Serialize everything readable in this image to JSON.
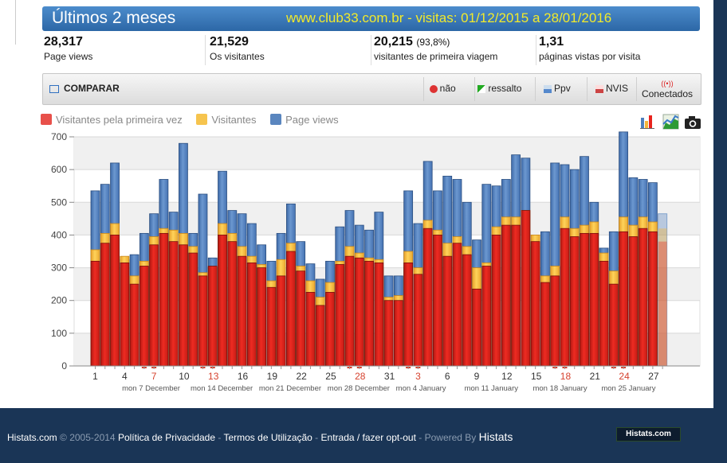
{
  "banner": {
    "title": "Últimos 2 meses",
    "subtitle": "www.club33.com.br - visitas: 01/12/2015 a 28/01/2016"
  },
  "stats": [
    {
      "value": "28,317",
      "label": "Page views"
    },
    {
      "value": "21,529",
      "label": "Os visitantes"
    },
    {
      "value": "20,215",
      "pct": "(93,8%)",
      "label": "visitantes de primeira viagem"
    },
    {
      "value": "1,31",
      "label": "páginas vistas por visita"
    }
  ],
  "toolbar": {
    "compare": "COMPARAR",
    "nao": "não",
    "ressalto": "ressalto",
    "ppv": "Ppv",
    "nvis": "NVIS",
    "conectados": "Conectados"
  },
  "legend": [
    "Visitantes pela primeira vez",
    "Visitantes",
    "Page views"
  ],
  "colors": {
    "first": "#e8231d",
    "visitors": "#f5b43a",
    "pageviews": "#4f7fbd",
    "weekend": "#d6422e"
  },
  "footer": {
    "brand": "Histats.com",
    "copyright": "© 2005-2014",
    "privacy": "Política de Privacidade",
    "terms": "Termos de Utilização",
    "optout": "Entrada / fazer opt-out",
    "powered": "- Powered By",
    "histats": "Histats",
    "badge": "Histats.com"
  },
  "chart_data": {
    "type": "bar",
    "ylim": [
      0,
      700
    ],
    "yticks": [
      0,
      100,
      200,
      300,
      400,
      500,
      600,
      700
    ],
    "x_tick_labels": [
      "1",
      "4",
      "7",
      "10",
      "13",
      "16",
      "19",
      "22",
      "25",
      "28",
      "31",
      "3",
      "6",
      "9",
      "12",
      "15",
      "18",
      "21",
      "24",
      "27"
    ],
    "x_tick_indices": [
      0,
      3,
      6,
      9,
      12,
      15,
      18,
      21,
      24,
      27,
      30,
      33,
      36,
      39,
      42,
      45,
      48,
      51,
      54,
      57
    ],
    "red_ticks": [
      6,
      12,
      27,
      33,
      48,
      54
    ],
    "week_labels": [
      "mon 7 December",
      "mon 14 December",
      "mon 21 December",
      "mon 28 December",
      "mon 4 January",
      "mon 11 January",
      "mon 18 January",
      "mon 25 January"
    ],
    "week_label_indices": [
      6,
      13,
      20,
      27,
      34,
      41,
      48,
      55
    ],
    "series": [
      {
        "name": "Page views",
        "values": [
          535,
          555,
          620,
          325,
          340,
          405,
          465,
          570,
          470,
          680,
          405,
          525,
          330,
          595,
          475,
          465,
          435,
          370,
          320,
          405,
          495,
          380,
          312,
          265,
          320,
          425,
          475,
          430,
          415,
          470,
          275,
          275,
          535,
          435,
          625,
          535,
          580,
          570,
          500,
          385,
          555,
          550,
          570,
          645,
          635,
          365,
          410,
          620,
          615,
          600,
          640,
          500,
          360,
          410,
          715,
          575,
          570,
          560
        ]
      },
      {
        "name": "Visitantes",
        "values": [
          355,
          405,
          435,
          335,
          275,
          320,
          395,
          420,
          415,
          405,
          365,
          285,
          300,
          435,
          405,
          365,
          335,
          310,
          260,
          325,
          375,
          305,
          260,
          210,
          255,
          320,
          365,
          345,
          330,
          325,
          210,
          215,
          350,
          300,
          445,
          415,
          375,
          395,
          365,
          300,
          315,
          425,
          455,
          455,
          475,
          400,
          275,
          305,
          455,
          420,
          430,
          440,
          345,
          290,
          455,
          430,
          455,
          440
        ]
      },
      {
        "name": "Visitantes pela primeira vez",
        "values": [
          320,
          375,
          400,
          315,
          250,
          305,
          370,
          405,
          380,
          370,
          345,
          275,
          305,
          400,
          380,
          335,
          315,
          300,
          240,
          275,
          350,
          290,
          225,
          185,
          225,
          310,
          335,
          330,
          320,
          315,
          200,
          200,
          315,
          280,
          420,
          400,
          335,
          375,
          340,
          235,
          305,
          400,
          430,
          430,
          475,
          380,
          255,
          275,
          420,
          395,
          405,
          405,
          320,
          250,
          410,
          395,
          420,
          410
        ]
      }
    ],
    "partial_day": {
      "pageviews": 465,
      "visitors": 420,
      "first": 380
    }
  }
}
